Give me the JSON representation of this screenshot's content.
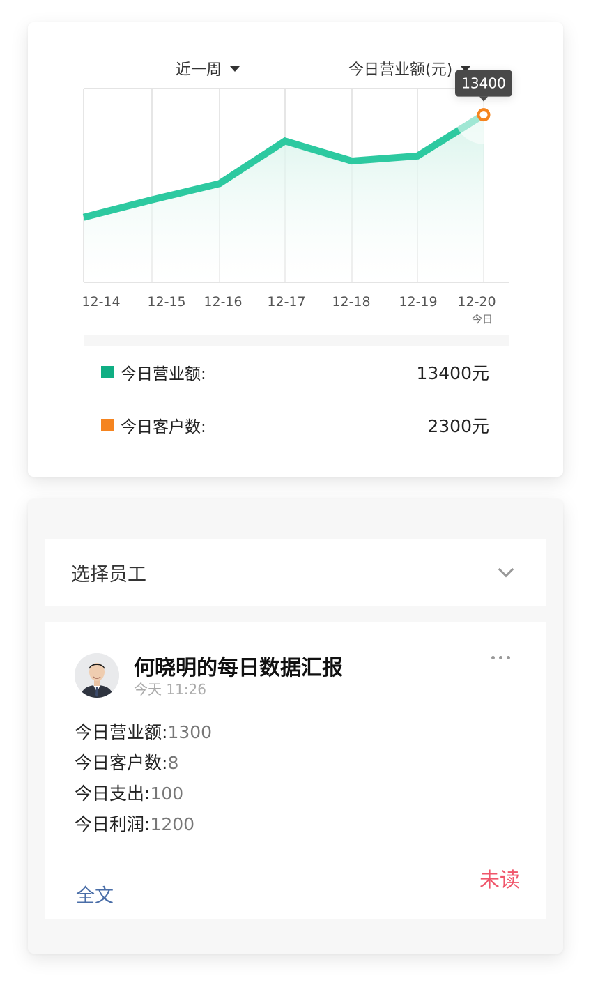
{
  "filters": {
    "range_label": "近一周",
    "metric_label": "今日营业额(元)"
  },
  "chart_data": {
    "type": "line",
    "categories": [
      "12-14",
      "12-15",
      "12-16",
      "12-17",
      "12-18",
      "12-19",
      "12-20"
    ],
    "today_sub_label": "今日",
    "series": [
      {
        "values": [
          5200,
          6600,
          7900,
          11300,
          9700,
          10100,
          13400
        ]
      }
    ],
    "tooltip": {
      "category": "12-20",
      "text": "13400"
    },
    "ylim": [
      0,
      15500
    ],
    "grid": "vertical",
    "colors": {
      "line": "#2dc9a0",
      "area_top": "#d6f3ea",
      "highlight": "#f5841f",
      "tooltip_bg": "#4a4a4a"
    }
  },
  "legend": [
    {
      "label": "今日营业额:",
      "value": "13400元",
      "color": "#0fae83"
    },
    {
      "label": "今日客户数:",
      "value": "2300元",
      "color": "#f5841f"
    }
  ],
  "employee_select": {
    "label": "选择员工"
  },
  "report": {
    "title": "何晓明的每日数据汇报",
    "time": "今天 11:26",
    "metrics": [
      {
        "label": "今日营业额:",
        "value": "1300"
      },
      {
        "label": "今日客户数:",
        "value": "8"
      },
      {
        "label": "今日支出:",
        "value": "100"
      },
      {
        "label": "今日利润:",
        "value": "1200"
      }
    ],
    "fulltext_label": "全文",
    "status_label": "未读",
    "status_color": "#f0566b"
  }
}
